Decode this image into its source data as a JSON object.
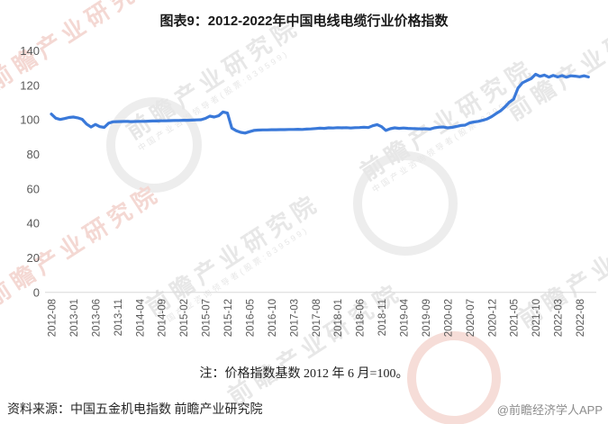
{
  "title": "图表9：2012-2022年中国电线电缆行业价格指数",
  "note": "注：价格指数基数 2012 年 6 月=100。",
  "source": "资料来源：中国五金机电指数 前瞻产业研究院",
  "credit": "@前瞻经济学人APP",
  "watermark": {
    "text": "前瞻产业研究院",
    "subtext": "中国产业咨询领导者(股票:839599)"
  },
  "chart_data": {
    "type": "line",
    "title": "图表9：2012-2022年中国电线电缆行业价格指数",
    "x_unit": "month",
    "x_start": "2012-08",
    "x_end": "2022-10",
    "x_tick_labels": [
      "2012-08",
      "2013-01",
      "2013-06",
      "2013-11",
      "2014-04",
      "2014-09",
      "2015-02",
      "2015-07",
      "2015-12",
      "2016-05",
      "2016-10",
      "2017-03",
      "2017-08",
      "2018-01",
      "2018-06",
      "2018-11",
      "2019-04",
      "2019-09",
      "2020-02",
      "2020-07",
      "2020-12",
      "2021-05",
      "2021-10",
      "2022-03",
      "2022-08"
    ],
    "x_tick_every": 5,
    "ylim": [
      0,
      140
    ],
    "y_ticks": [
      0,
      20,
      40,
      60,
      80,
      100,
      120,
      140
    ],
    "grid": false,
    "legend": "none",
    "line_color": "#3a79d9",
    "axis_color": "#d8d8d8",
    "tick_label_color": "#595959",
    "series": [
      {
        "name": "价格指数",
        "values": [
          103.4,
          101.0,
          100.3,
          100.8,
          101.4,
          101.7,
          101.2,
          100.4,
          97.6,
          95.9,
          97.4,
          96.1,
          95.7,
          98.1,
          98.9,
          99.0,
          99.1,
          99.2,
          99.0,
          99.1,
          99.2,
          99.2,
          99.3,
          99.4,
          99.4,
          99.5,
          99.5,
          99.6,
          99.7,
          99.7,
          99.8,
          99.8,
          99.9,
          100.0,
          100.1,
          100.9,
          102.2,
          101.7,
          102.4,
          104.6,
          104.0,
          95.2,
          93.7,
          92.8,
          92.4,
          93.2,
          93.9,
          94.1,
          94.2,
          94.2,
          94.3,
          94.3,
          94.4,
          94.4,
          94.5,
          94.5,
          94.6,
          94.5,
          94.7,
          94.8,
          95.0,
          95.2,
          95.1,
          95.4,
          95.3,
          95.5,
          95.4,
          95.5,
          95.3,
          95.5,
          95.6,
          95.8,
          95.6,
          96.6,
          97.3,
          96.1,
          93.9,
          94.9,
          95.4,
          95.1,
          95.3,
          95.1,
          95.0,
          94.9,
          94.8,
          94.9,
          94.7,
          95.4,
          95.8,
          95.9,
          95.4,
          95.7,
          96.2,
          96.8,
          97.0,
          98.3,
          98.8,
          99.2,
          99.8,
          100.6,
          101.9,
          103.6,
          105.2,
          107.5,
          110.2,
          112.0,
          118.5,
          121.5,
          122.8,
          124.0,
          126.5,
          125.3,
          126.0,
          124.8,
          125.8,
          124.9,
          125.7,
          124.8,
          125.6,
          125.4,
          125.0,
          125.6,
          124.9
        ]
      }
    ]
  }
}
